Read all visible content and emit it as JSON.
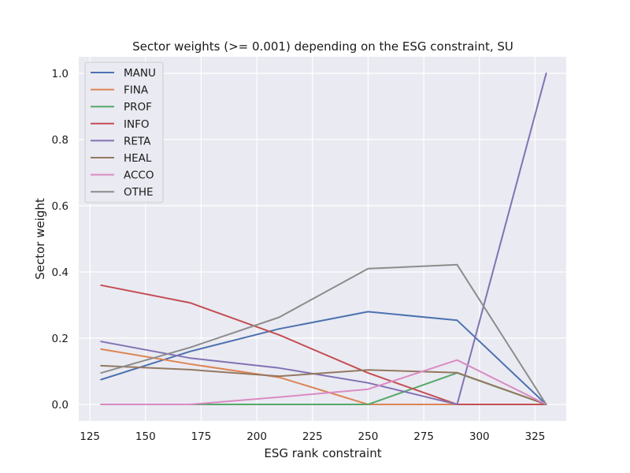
{
  "chart_data": {
    "type": "line",
    "title": "Sector weights (>= 0.001) depending on the ESG constraint, SU",
    "xlabel": "ESG rank constraint",
    "ylabel": "Sector weight",
    "xlim": [
      120,
      339
    ],
    "ylim": [
      -0.05,
      1.05
    ],
    "xticks": [
      125,
      150,
      175,
      200,
      225,
      250,
      275,
      300,
      325
    ],
    "yticks": [
      0.0,
      0.2,
      0.4,
      0.6,
      0.8,
      1.0
    ],
    "xtick_labels": [
      "125",
      "150",
      "175",
      "200",
      "225",
      "250",
      "275",
      "300",
      "325"
    ],
    "ytick_labels": [
      "0.0",
      "0.2",
      "0.4",
      "0.6",
      "0.8",
      "1.0"
    ],
    "grid": true,
    "legend_position": "top-left",
    "x": [
      130,
      170,
      210,
      250,
      290,
      330
    ],
    "series": [
      {
        "name": "MANU",
        "color": "#4c72b0",
        "values": [
          0.075,
          0.16,
          0.228,
          0.28,
          0.254,
          0.0
        ]
      },
      {
        "name": "FINA",
        "color": "#dd8452",
        "values": [
          0.167,
          0.122,
          0.082,
          0.0,
          0.0,
          0.0
        ]
      },
      {
        "name": "PROF",
        "color": "#55a868",
        "values": [
          0.0,
          0.0,
          0.0,
          0.0,
          0.095,
          0.0
        ]
      },
      {
        "name": "INFO",
        "color": "#c44e52",
        "values": [
          0.36,
          0.307,
          0.21,
          0.095,
          0.0,
          0.0
        ]
      },
      {
        "name": "RETA",
        "color": "#8172b3",
        "values": [
          0.19,
          0.14,
          0.11,
          0.065,
          0.0,
          1.0
        ]
      },
      {
        "name": "HEAL",
        "color": "#937860",
        "values": [
          0.117,
          0.105,
          0.085,
          0.104,
          0.096,
          0.0
        ]
      },
      {
        "name": "ACCO",
        "color": "#da8bc3",
        "values": [
          0.0,
          0.0,
          0.022,
          0.046,
          0.134,
          0.0
        ]
      },
      {
        "name": "OTHE",
        "color": "#8c8c8c",
        "values": [
          0.095,
          0.172,
          0.263,
          0.41,
          0.422,
          0.0
        ]
      }
    ]
  },
  "colors": {
    "plot_background": "#eaeaf2",
    "grid": "#ffffff",
    "legend_background": "#eaeaf2",
    "legend_border": "#cccccc"
  }
}
